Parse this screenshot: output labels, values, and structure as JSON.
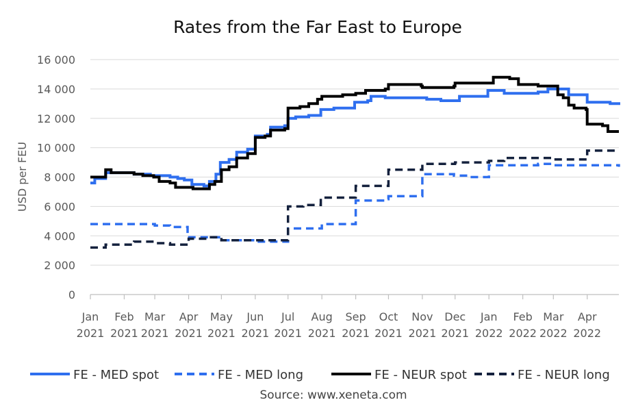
{
  "chart_data": {
    "type": "line",
    "title": "Rates from the Far East to Europe",
    "ylabel": "USD per FEU",
    "source": "Source: www.xeneta.com",
    "ylim": [
      0,
      16000
    ],
    "yticks": [
      {
        "value": 0,
        "label": "0"
      },
      {
        "value": 2000,
        "label": "2 000"
      },
      {
        "value": 4000,
        "label": "4 000"
      },
      {
        "value": 6000,
        "label": "6 000"
      },
      {
        "value": 8000,
        "label": "8 000"
      },
      {
        "value": 10000,
        "label": "10 000"
      },
      {
        "value": 12000,
        "label": "12 000"
      },
      {
        "value": 14000,
        "label": "14 000"
      },
      {
        "value": 16000,
        "label": "16 000"
      }
    ],
    "xlim": [
      "2021-01-01",
      "2022-04-30"
    ],
    "xticks": [
      {
        "date": "2021-01-01",
        "month": "Jan",
        "year": "2021"
      },
      {
        "date": "2021-02-01",
        "month": "Feb",
        "year": "2021"
      },
      {
        "date": "2021-03-01",
        "month": "Mar",
        "year": "2021"
      },
      {
        "date": "2021-04-01",
        "month": "Apr",
        "year": "2021"
      },
      {
        "date": "2021-05-01",
        "month": "May",
        "year": "2021"
      },
      {
        "date": "2021-06-01",
        "month": "Jun",
        "year": "2021"
      },
      {
        "date": "2021-07-01",
        "month": "Jul",
        "year": "2021"
      },
      {
        "date": "2021-08-01",
        "month": "Aug",
        "year": "2021"
      },
      {
        "date": "2021-09-01",
        "month": "Sep",
        "year": "2021"
      },
      {
        "date": "2021-10-01",
        "month": "Oct",
        "year": "2021"
      },
      {
        "date": "2021-11-01",
        "month": "Nov",
        "year": "2021"
      },
      {
        "date": "2021-12-01",
        "month": "Dec",
        "year": "2021"
      },
      {
        "date": "2022-01-01",
        "month": "Jan",
        "year": "2022"
      },
      {
        "date": "2022-02-01",
        "month": "Feb",
        "year": "2022"
      },
      {
        "date": "2022-03-01",
        "month": "Mar",
        "year": "2022"
      },
      {
        "date": "2022-04-01",
        "month": "Apr",
        "year": "2022"
      }
    ],
    "grid": true,
    "legend_position": "bottom",
    "series": [
      {
        "name": "FE - MED spot",
        "color": "#2f6fef",
        "dashed": false,
        "points": [
          [
            "2021-01-01",
            7600
          ],
          [
            "2021-01-05",
            7900
          ],
          [
            "2021-01-15",
            8300
          ],
          [
            "2021-02-10",
            8200
          ],
          [
            "2021-02-25",
            8100
          ],
          [
            "2021-03-15",
            8000
          ],
          [
            "2021-03-22",
            7900
          ],
          [
            "2021-03-28",
            7800
          ],
          [
            "2021-04-04",
            7500
          ],
          [
            "2021-04-15",
            7400
          ],
          [
            "2021-04-20",
            7700
          ],
          [
            "2021-04-26",
            8200
          ],
          [
            "2021-04-30",
            9000
          ],
          [
            "2021-05-08",
            9200
          ],
          [
            "2021-05-15",
            9700
          ],
          [
            "2021-05-25",
            9900
          ],
          [
            "2021-06-01",
            10800
          ],
          [
            "2021-06-12",
            10900
          ],
          [
            "2021-06-15",
            11400
          ],
          [
            "2021-06-28",
            11500
          ],
          [
            "2021-07-01",
            12000
          ],
          [
            "2021-07-08",
            12100
          ],
          [
            "2021-07-20",
            12200
          ],
          [
            "2021-07-31",
            12600
          ],
          [
            "2021-08-12",
            12700
          ],
          [
            "2021-08-31",
            13100
          ],
          [
            "2021-09-12",
            13200
          ],
          [
            "2021-09-15",
            13500
          ],
          [
            "2021-09-28",
            13400
          ],
          [
            "2021-10-20",
            13400
          ],
          [
            "2021-11-05",
            13300
          ],
          [
            "2021-11-18",
            13200
          ],
          [
            "2021-12-05",
            13500
          ],
          [
            "2021-12-31",
            13900
          ],
          [
            "2022-01-15",
            13700
          ],
          [
            "2022-02-01",
            13700
          ],
          [
            "2022-02-15",
            13800
          ],
          [
            "2022-02-24",
            14000
          ],
          [
            "2022-03-12",
            14000
          ],
          [
            "2022-03-15",
            13600
          ],
          [
            "2022-03-25",
            13600
          ],
          [
            "2022-04-01",
            13100
          ],
          [
            "2022-04-22",
            13000
          ],
          [
            "2022-04-30",
            13100
          ]
        ]
      },
      {
        "name": "FE - MED long",
        "color": "#2f6fef",
        "dashed": true,
        "points": [
          [
            "2021-01-01",
            4800
          ],
          [
            "2021-02-01",
            4800
          ],
          [
            "2021-02-10",
            4800
          ],
          [
            "2021-03-01",
            4700
          ],
          [
            "2021-03-15",
            4600
          ],
          [
            "2021-03-31",
            3900
          ],
          [
            "2021-04-20",
            3900
          ],
          [
            "2021-05-01",
            3700
          ],
          [
            "2021-06-01",
            3600
          ],
          [
            "2021-06-28",
            3600
          ],
          [
            "2021-07-01",
            4500
          ],
          [
            "2021-07-28",
            4500
          ],
          [
            "2021-08-01",
            4800
          ],
          [
            "2021-08-31",
            4800
          ],
          [
            "2021-09-01",
            6400
          ],
          [
            "2021-09-30",
            6500
          ],
          [
            "2021-10-01",
            6700
          ],
          [
            "2021-10-31",
            6700
          ],
          [
            "2021-11-01",
            8200
          ],
          [
            "2021-11-30",
            8100
          ],
          [
            "2021-12-15",
            8000
          ],
          [
            "2021-12-31",
            8000
          ],
          [
            "2022-01-01",
            8800
          ],
          [
            "2022-01-31",
            8800
          ],
          [
            "2022-02-15",
            8900
          ],
          [
            "2022-03-01",
            8800
          ],
          [
            "2022-04-20",
            8800
          ],
          [
            "2022-04-30",
            8700
          ]
        ]
      },
      {
        "name": "FE - NEUR spot",
        "color": "#000000",
        "dashed": false,
        "points": [
          [
            "2021-01-01",
            8000
          ],
          [
            "2021-01-14",
            8000
          ],
          [
            "2021-01-15",
            8500
          ],
          [
            "2021-01-20",
            8300
          ],
          [
            "2021-02-10",
            8200
          ],
          [
            "2021-02-18",
            8100
          ],
          [
            "2021-02-28",
            8000
          ],
          [
            "2021-03-05",
            7700
          ],
          [
            "2021-03-15",
            7600
          ],
          [
            "2021-03-20",
            7300
          ],
          [
            "2021-04-01",
            7300
          ],
          [
            "2021-04-05",
            7200
          ],
          [
            "2021-04-15",
            7200
          ],
          [
            "2021-04-20",
            7500
          ],
          [
            "2021-04-25",
            7700
          ],
          [
            "2021-05-01",
            8500
          ],
          [
            "2021-05-08",
            8700
          ],
          [
            "2021-05-15",
            9300
          ],
          [
            "2021-05-25",
            9600
          ],
          [
            "2021-06-01",
            10700
          ],
          [
            "2021-06-10",
            10800
          ],
          [
            "2021-06-15",
            11200
          ],
          [
            "2021-06-28",
            11300
          ],
          [
            "2021-07-01",
            12700
          ],
          [
            "2021-07-12",
            12800
          ],
          [
            "2021-07-20",
            13000
          ],
          [
            "2021-07-28",
            13300
          ],
          [
            "2021-08-01",
            13500
          ],
          [
            "2021-08-20",
            13600
          ],
          [
            "2021-09-01",
            13700
          ],
          [
            "2021-09-10",
            13900
          ],
          [
            "2021-09-28",
            14000
          ],
          [
            "2021-10-01",
            14300
          ],
          [
            "2021-10-15",
            14300
          ],
          [
            "2021-10-31",
            14200
          ],
          [
            "2021-11-01",
            14100
          ],
          [
            "2021-11-30",
            14200
          ],
          [
            "2021-12-01",
            14400
          ],
          [
            "2021-12-31",
            14400
          ],
          [
            "2022-01-05",
            14800
          ],
          [
            "2022-01-20",
            14700
          ],
          [
            "2022-01-28",
            14300
          ],
          [
            "2022-02-15",
            14200
          ],
          [
            "2022-03-01",
            14200
          ],
          [
            "2022-03-05",
            13600
          ],
          [
            "2022-03-10",
            13400
          ],
          [
            "2022-03-15",
            12900
          ],
          [
            "2022-03-20",
            12700
          ],
          [
            "2022-03-31",
            12600
          ],
          [
            "2022-04-01",
            11600
          ],
          [
            "2022-04-15",
            11500
          ],
          [
            "2022-04-20",
            11100
          ],
          [
            "2022-04-30",
            11100
          ]
        ]
      },
      {
        "name": "FE - NEUR long",
        "color": "#14213d",
        "dashed": true,
        "points": [
          [
            "2021-01-01",
            3200
          ],
          [
            "2021-01-15",
            3400
          ],
          [
            "2021-02-10",
            3600
          ],
          [
            "2021-02-28",
            3500
          ],
          [
            "2021-03-15",
            3400
          ],
          [
            "2021-03-31",
            3400
          ],
          [
            "2021-04-01",
            3800
          ],
          [
            "2021-04-20",
            3900
          ],
          [
            "2021-05-01",
            3700
          ],
          [
            "2021-05-31",
            3700
          ],
          [
            "2021-06-10",
            3700
          ],
          [
            "2021-06-30",
            3700
          ],
          [
            "2021-07-01",
            6000
          ],
          [
            "2021-07-15",
            6100
          ],
          [
            "2021-07-31",
            6600
          ],
          [
            "2021-08-31",
            6600
          ],
          [
            "2021-09-01",
            7400
          ],
          [
            "2021-09-30",
            7400
          ],
          [
            "2021-10-01",
            8500
          ],
          [
            "2021-10-31",
            8500
          ],
          [
            "2021-11-01",
            8900
          ],
          [
            "2021-11-30",
            8900
          ],
          [
            "2021-12-01",
            9000
          ],
          [
            "2022-01-01",
            9100
          ],
          [
            "2022-01-15",
            9300
          ],
          [
            "2022-02-15",
            9300
          ],
          [
            "2022-03-01",
            9200
          ],
          [
            "2022-03-31",
            9200
          ],
          [
            "2022-04-01",
            9800
          ],
          [
            "2022-04-30",
            9800
          ]
        ]
      }
    ]
  }
}
